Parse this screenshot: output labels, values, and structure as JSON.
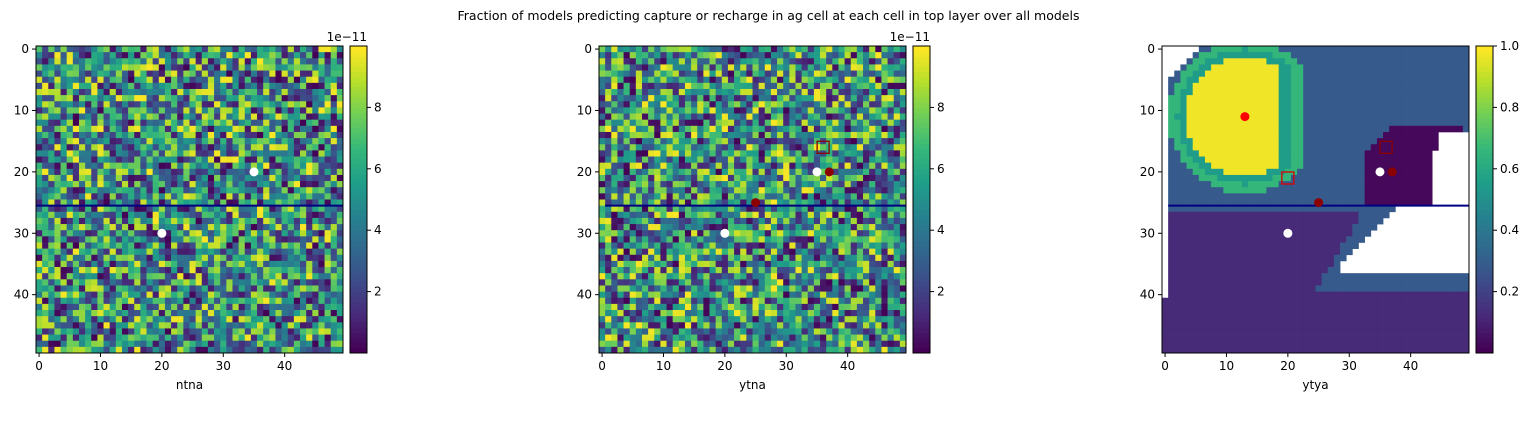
{
  "suptitle": "Fraction of models predicting capture or recharge in ag cell at each cell in top layer over all models",
  "chart_data": [
    {
      "type": "heatmap",
      "xlabel": "ntna",
      "grid_size": 50,
      "xticks": [
        "0",
        "10",
        "20",
        "30",
        "40"
      ],
      "yticks": [
        "0",
        "10",
        "20",
        "30",
        "40"
      ],
      "field": "random",
      "colorbar": {
        "ticks": [
          "2",
          "4",
          "6",
          "8"
        ],
        "tick_values": [
          2,
          4,
          6,
          8
        ],
        "range": [
          0,
          10
        ],
        "offset_label": "1e−11"
      },
      "line": {
        "y": 25.5,
        "x": [
          -0.5,
          49.5
        ],
        "color": "#000080"
      },
      "markers": [
        {
          "x": 35,
          "y": 20,
          "color": "#ffffff",
          "shape": "circle"
        },
        {
          "x": 20,
          "y": 30,
          "color": "#ffffff",
          "shape": "circle"
        }
      ]
    },
    {
      "type": "heatmap",
      "xlabel": "ytna",
      "grid_size": 50,
      "xticks": [
        "0",
        "10",
        "20",
        "30",
        "40"
      ],
      "yticks": [
        "0",
        "10",
        "20",
        "30",
        "40"
      ],
      "field": "random",
      "colorbar": {
        "ticks": [
          "2",
          "4",
          "6",
          "8"
        ],
        "tick_values": [
          2,
          4,
          6,
          8
        ],
        "range": [
          0,
          10
        ],
        "offset_label": "1e−11"
      },
      "line": {
        "y": 25.5,
        "x": [
          0.5,
          49.5
        ],
        "color": "#000080"
      },
      "markers": [
        {
          "x": 35,
          "y": 20,
          "color": "#ffffff",
          "shape": "circle"
        },
        {
          "x": 20,
          "y": 30,
          "color": "#ffffff",
          "shape": "circle"
        },
        {
          "x": 37,
          "y": 20,
          "color": "#8b0000",
          "shape": "circle"
        },
        {
          "x": 25,
          "y": 25,
          "color": "#8b0000",
          "shape": "circle"
        },
        {
          "x": 36,
          "y": 16,
          "color": "#8b0000",
          "shape": "square"
        }
      ]
    },
    {
      "type": "heatmap",
      "xlabel": "ytya",
      "grid_size": 50,
      "xticks": [
        "0",
        "10",
        "20",
        "30",
        "40"
      ],
      "yticks": [
        "0",
        "10",
        "20",
        "30",
        "40"
      ],
      "field": "regions",
      "colorbar": {
        "ticks": [
          "0.2",
          "0.4",
          "0.6",
          "0.8",
          "1.0"
        ],
        "tick_values": [
          0.2,
          0.4,
          0.6,
          0.8,
          1.0
        ],
        "range": [
          0,
          1.0
        ],
        "offset_label": ""
      },
      "line": {
        "y": 25.5,
        "x": [
          0.5,
          49.5
        ],
        "color": "#000080"
      },
      "markers": [
        {
          "x": 13,
          "y": 11,
          "color": "#ff0000",
          "shape": "circle"
        },
        {
          "x": 35,
          "y": 20,
          "color": "#ffffff",
          "shape": "circle"
        },
        {
          "x": 20,
          "y": 30,
          "color": "#ffffff",
          "shape": "circle"
        },
        {
          "x": 37,
          "y": 20,
          "color": "#8b0000",
          "shape": "circle"
        },
        {
          "x": 25,
          "y": 25,
          "color": "#8b0000",
          "shape": "circle"
        },
        {
          "x": 20,
          "y": 21,
          "color": "#dd0000",
          "shape": "square"
        },
        {
          "x": 36,
          "y": 16,
          "color": "#8b0000",
          "shape": "square"
        }
      ]
    }
  ]
}
